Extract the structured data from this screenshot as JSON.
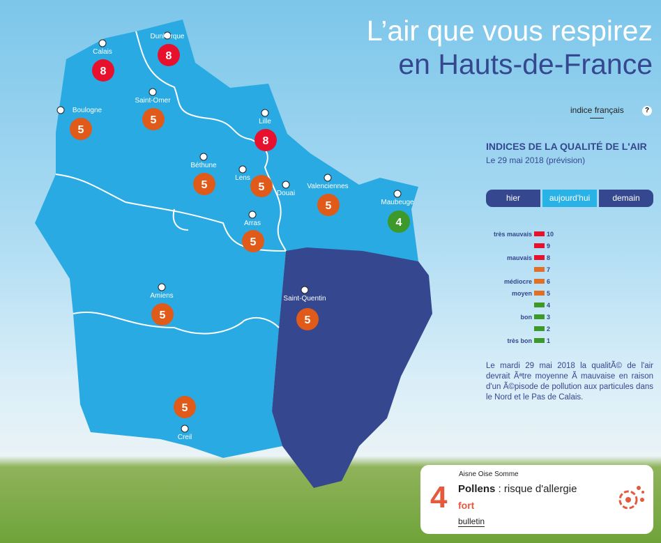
{
  "header": {
    "title_line1": "L’air que vous respirez",
    "title_line2": "en Hauts-de-France"
  },
  "index_toggle": {
    "label": "indice français",
    "help": "?"
  },
  "panel": {
    "heading": "INDICES DE LA QUALITÉ DE L'AIR",
    "date": "Le 29 mai 2018 (prévision)",
    "tabs": [
      {
        "label": "hier"
      },
      {
        "label": "aujourd'hui",
        "active": true
      },
      {
        "label": "demain"
      }
    ],
    "legend": [
      {
        "label": "très mauvais",
        "value": "10",
        "color": "#e8112d"
      },
      {
        "label": "",
        "value": "9",
        "color": "#e8112d"
      },
      {
        "label": "mauvais",
        "value": "8",
        "color": "#e8112d"
      },
      {
        "label": "",
        "value": "7",
        "color": "#e07028"
      },
      {
        "label": "médiocre",
        "value": "6",
        "color": "#e07028"
      },
      {
        "label": "moyen",
        "value": "5",
        "color": "#e07028"
      },
      {
        "label": "",
        "value": "4",
        "color": "#3d9a2a"
      },
      {
        "label": "bon",
        "value": "3",
        "color": "#3d9a2a"
      },
      {
        "label": "",
        "value": "2",
        "color": "#3d9a2a"
      },
      {
        "label": "très bon",
        "value": "1",
        "color": "#3d9a2a"
      }
    ],
    "description": "Le mardi 29 mai 2018 la qualitÃ© de l'air devrait Ãªtre moyenne Ã  mauvaise en raison d'un Ã©pisode de pollution aux particules dans le Nord et le Pas de Calais."
  },
  "map": {
    "colors": {
      "region": "#29aae2",
      "selected": "#34478f",
      "red": "#e8112d",
      "orange": "#e05a1a",
      "green": "#3d9a2a"
    },
    "cities": [
      {
        "name": "Calais",
        "value": "8",
        "level": "red"
      },
      {
        "name": "Dunkerque",
        "value": "8",
        "level": "red"
      },
      {
        "name": "Boulogne",
        "value": "5",
        "level": "orange"
      },
      {
        "name": "Saint-Omer",
        "value": "5",
        "level": "orange"
      },
      {
        "name": "Lille",
        "value": "8",
        "level": "red"
      },
      {
        "name": "Béthune",
        "value": "5",
        "level": "orange"
      },
      {
        "name": "Lens",
        "value": "5",
        "level": "orange"
      },
      {
        "name": "Douai",
        "value": "",
        "level": ""
      },
      {
        "name": "Valenciennes",
        "value": "5",
        "level": "orange"
      },
      {
        "name": "Maubeuge",
        "value": "4",
        "level": "green"
      },
      {
        "name": "Arras",
        "value": "5",
        "level": "orange"
      },
      {
        "name": "Amiens",
        "value": "5",
        "level": "orange"
      },
      {
        "name": "Saint-Quentin",
        "value": "5",
        "level": "orange"
      },
      {
        "name": "Creil",
        "value": "5",
        "level": "orange"
      }
    ]
  },
  "pollen": {
    "value": "4",
    "zone": "Aisne Oise Somme",
    "title_bold": "Pollens",
    "title_rest": " : risque d'allergie",
    "level": "fort",
    "link": "bulletin",
    "icon": "flower-pollen-icon"
  }
}
